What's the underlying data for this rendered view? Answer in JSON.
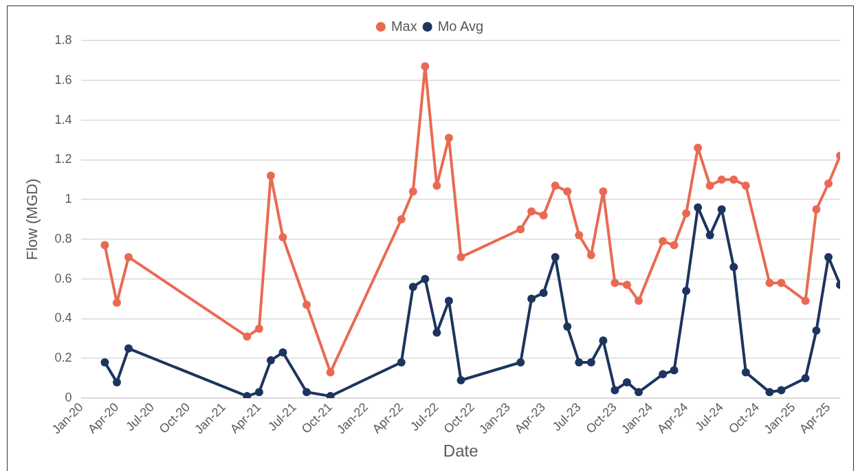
{
  "chart_data": {
    "type": "line",
    "xlabel": "Date",
    "ylabel": "Flow (MGD)",
    "x": [
      "2020-03",
      "2020-04",
      "2020-05",
      "2021-03",
      "2021-04",
      "2021-05",
      "2021-06",
      "2021-08",
      "2021-10",
      "2022-04",
      "2022-05",
      "2022-06",
      "2022-07",
      "2022-08",
      "2022-09",
      "2023-02",
      "2023-03",
      "2023-04",
      "2023-05",
      "2023-06",
      "2023-07",
      "2023-08",
      "2023-09",
      "2023-10",
      "2023-11",
      "2023-12",
      "2024-02",
      "2024-03",
      "2024-04",
      "2024-05",
      "2024-06",
      "2024-07",
      "2024-08",
      "2024-09",
      "2024-11",
      "2024-12",
      "2025-02",
      "2025-03",
      "2025-04",
      "2025-05"
    ],
    "series": [
      {
        "name": "Max",
        "color": "#e96a52",
        "values": [
          0.77,
          0.48,
          0.71,
          0.31,
          0.35,
          1.12,
          0.81,
          0.47,
          0.13,
          0.9,
          1.04,
          1.67,
          1.07,
          1.31,
          0.71,
          0.85,
          0.94,
          0.92,
          1.07,
          1.04,
          0.82,
          0.72,
          1.04,
          0.58,
          0.57,
          0.49,
          0.79,
          0.77,
          0.93,
          1.26,
          1.07,
          1.1,
          1.1,
          1.07,
          0.58,
          0.58,
          0.49,
          0.95,
          1.08,
          1.22
        ]
      },
      {
        "name": "Mo Avg",
        "color": "#1c355e",
        "values": [
          0.18,
          0.08,
          0.25,
          0.01,
          0.03,
          0.19,
          0.23,
          0.03,
          0.01,
          0.18,
          0.56,
          0.6,
          0.33,
          0.49,
          0.09,
          0.18,
          0.5,
          0.53,
          0.71,
          0.36,
          0.18,
          0.18,
          0.29,
          0.04,
          0.08,
          0.03,
          0.12,
          0.14,
          0.54,
          0.96,
          0.82,
          0.95,
          0.66,
          0.13,
          0.03,
          0.04,
          0.1,
          0.34,
          0.71,
          0.57
        ]
      }
    ],
    "xlim": [
      "2020-01",
      "2025-05"
    ],
    "xticks": [
      {
        "value": "2020-01",
        "label": "Jan-20"
      },
      {
        "value": "2020-04",
        "label": "Apr-20"
      },
      {
        "value": "2020-07",
        "label": "Jul-20"
      },
      {
        "value": "2020-10",
        "label": "Oct-20"
      },
      {
        "value": "2021-01",
        "label": "Jan-21"
      },
      {
        "value": "2021-04",
        "label": "Apr-21"
      },
      {
        "value": "2021-07",
        "label": "Jul-21"
      },
      {
        "value": "2021-10",
        "label": "Oct-21"
      },
      {
        "value": "2022-01",
        "label": "Jan-22"
      },
      {
        "value": "2022-04",
        "label": "Apr-22"
      },
      {
        "value": "2022-07",
        "label": "Jul-22"
      },
      {
        "value": "2022-10",
        "label": "Oct-22"
      },
      {
        "value": "2023-01",
        "label": "Jan-23"
      },
      {
        "value": "2023-04",
        "label": "Apr-23"
      },
      {
        "value": "2023-07",
        "label": "Jul-23"
      },
      {
        "value": "2023-10",
        "label": "Oct-23"
      },
      {
        "value": "2024-01",
        "label": "Jan-24"
      },
      {
        "value": "2024-04",
        "label": "Apr-24"
      },
      {
        "value": "2024-07",
        "label": "Jul-24"
      },
      {
        "value": "2024-10",
        "label": "Oct-24"
      },
      {
        "value": "2025-01",
        "label": "Jan-25"
      },
      {
        "value": "2025-04",
        "label": "Apr-25"
      }
    ],
    "ylim": [
      0,
      1.8
    ],
    "yticks": [
      0,
      0.2,
      0.4,
      0.6,
      0.8,
      1,
      1.2,
      1.4,
      1.6,
      1.8
    ],
    "grid": "y",
    "legend": "top",
    "marker": "circle",
    "line_style": "solid"
  }
}
